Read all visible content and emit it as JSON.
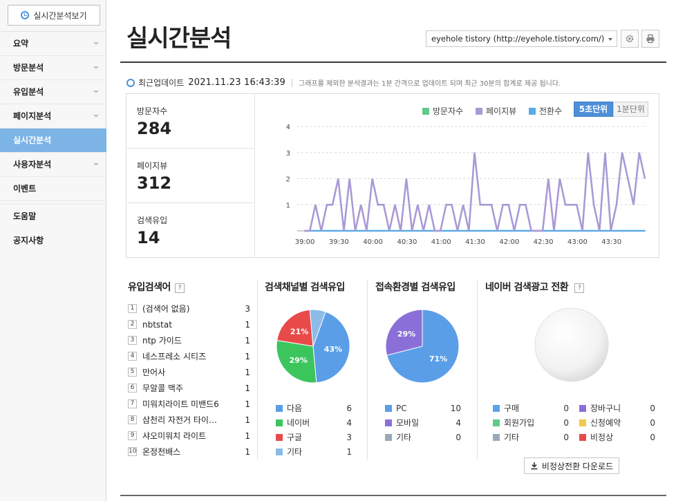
{
  "sidebar": {
    "realtime_button": "실시간분석보기",
    "items": [
      {
        "label": "요약",
        "chevron": true
      },
      {
        "label": "방문분석",
        "chevron": true
      },
      {
        "label": "유입분석",
        "chevron": true
      },
      {
        "label": "페이지분석",
        "chevron": true
      },
      {
        "label": "실시간분석",
        "chevron": false,
        "active": true
      },
      {
        "label": "사용자분석",
        "chevron": true
      },
      {
        "label": "이벤트",
        "chevron": false
      }
    ],
    "extra_items": [
      "도움말",
      "공지사항"
    ]
  },
  "header": {
    "title": "실시간분석",
    "blog_select": "eyehole tistory (http://eyehole.tistory.com/)",
    "icons": [
      "settings-icon",
      "print-icon"
    ]
  },
  "update": {
    "label": "최근업데이트",
    "time": "2021.11.23 16:43:39",
    "note": "그래프를 제외한 분석결과는 1분 간격으로 업데이트 되며 최근 30분의 합계로 제공 됩니다."
  },
  "stats": [
    {
      "label": "방문자수",
      "value": "284"
    },
    {
      "label": "페이지뷰",
      "value": "312"
    },
    {
      "label": "검색유입",
      "value": "14"
    }
  ],
  "chart_controls": {
    "legend": [
      {
        "name": "방문자수",
        "color": "#5fc98a"
      },
      {
        "name": "페이지뷰",
        "color": "#a99ad6"
      },
      {
        "name": "전환수",
        "color": "#5aabe8"
      }
    ],
    "interval_active": "5초단위",
    "interval_other": "1분단위"
  },
  "chart_data": {
    "type": "line",
    "x_tick_labels": [
      "39:00",
      "39:30",
      "40:00",
      "40:30",
      "41:00",
      "41:30",
      "42:00",
      "42:30",
      "43:00",
      "43:30"
    ],
    "ylim": [
      0,
      4
    ],
    "y_ticks": [
      1,
      2,
      3,
      4
    ],
    "grid": true,
    "series": [
      {
        "name": "페이지뷰",
        "color": "#a99ad6",
        "values": [
          0,
          0,
          1,
          0,
          1,
          1,
          2,
          0,
          2,
          0,
          1,
          0,
          2,
          1,
          1,
          0,
          1,
          0,
          2,
          0,
          1,
          0,
          1,
          0,
          0,
          1,
          1,
          0,
          1,
          0,
          3,
          1,
          1,
          1,
          0,
          1,
          1,
          0,
          1,
          1,
          0,
          0,
          0,
          2,
          0,
          2,
          1,
          1,
          1,
          0,
          3,
          1,
          0,
          3,
          0,
          1,
          3,
          2,
          1,
          3,
          2
        ]
      },
      {
        "name": "전환수",
        "color": "#5aabe8",
        "values": [
          0,
          0,
          0,
          0,
          0,
          0,
          0,
          0,
          0,
          0,
          0,
          0,
          0,
          0,
          0,
          0,
          0,
          0,
          0,
          0,
          0,
          0,
          0,
          0,
          0,
          0,
          0,
          0,
          0,
          0,
          0,
          0,
          0,
          0,
          0,
          0,
          0,
          0,
          0,
          0,
          0,
          0,
          0,
          0,
          0,
          0,
          0,
          0,
          0,
          0,
          0,
          0,
          0,
          0,
          0,
          0,
          0,
          0,
          0,
          0,
          0
        ]
      }
    ]
  },
  "keywords": {
    "title": "유입검색어",
    "rows": [
      {
        "rank": "1",
        "text": "(검색어 없음)",
        "count": "3"
      },
      {
        "rank": "2",
        "text": "nbtstat",
        "count": "1"
      },
      {
        "rank": "3",
        "text": "ntp 가이드",
        "count": "1"
      },
      {
        "rank": "4",
        "text": "네스프레소 시티즈",
        "count": "1"
      },
      {
        "rank": "5",
        "text": "만어사",
        "count": "1"
      },
      {
        "rank": "6",
        "text": "무알콜 맥주",
        "count": "1"
      },
      {
        "rank": "7",
        "text": "미워치라이트 미밴드6",
        "count": "1"
      },
      {
        "rank": "8",
        "text": "삼천리 자전거 타이…",
        "count": "1"
      },
      {
        "rank": "9",
        "text": "샤오미워치 라이트",
        "count": "1"
      },
      {
        "rank": "10",
        "text": "온정천배스",
        "count": "1"
      }
    ]
  },
  "search_channel": {
    "title": "검색채널별 검색유입",
    "slices": [
      {
        "name": "다음",
        "count": "6",
        "percent": 43,
        "label": "43%",
        "color": "#5b9ee8"
      },
      {
        "name": "네이버",
        "count": "4",
        "percent": 29,
        "label": "29%",
        "color": "#3cc55d"
      },
      {
        "name": "구글",
        "count": "3",
        "percent": 21,
        "label": "21%",
        "color": "#e84a4a"
      },
      {
        "name": "기타",
        "count": "1",
        "percent": 7,
        "label": "",
        "color": "#8bbbe8"
      }
    ]
  },
  "device": {
    "title": "접속환경별 검색유입",
    "slices": [
      {
        "name": "PC",
        "count": "10",
        "percent": 71,
        "label": "71%",
        "color": "#5b9ee8"
      },
      {
        "name": "모바일",
        "count": "4",
        "percent": 29,
        "label": "29%",
        "color": "#8a6fd8"
      },
      {
        "name": "기타",
        "count": "0",
        "percent": 0,
        "label": "",
        "color": "#9aa8b8"
      }
    ]
  },
  "ad_conversion": {
    "title": "네이버 검색광고 전환",
    "left": [
      {
        "name": "구매",
        "count": "0",
        "color": "#5aa3e8"
      },
      {
        "name": "회원가입",
        "count": "0",
        "color": "#5fc98a"
      },
      {
        "name": "기타",
        "count": "0",
        "color": "#9aa8b8"
      }
    ],
    "right": [
      {
        "name": "장바구니",
        "count": "0",
        "color": "#8a6fd8"
      },
      {
        "name": "신청예약",
        "count": "0",
        "color": "#f2c94c"
      },
      {
        "name": "비정상",
        "count": "0",
        "color": "#e84a4a"
      }
    ],
    "download_button": "비정상전환 다운로드"
  }
}
